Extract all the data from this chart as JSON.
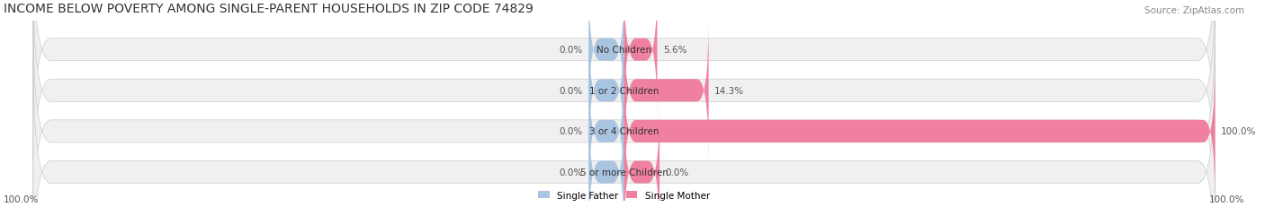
{
  "title": "INCOME BELOW POVERTY AMONG SINGLE-PARENT HOUSEHOLDS IN ZIP CODE 74829",
  "source": "Source: ZipAtlas.com",
  "categories": [
    "No Children",
    "1 or 2 Children",
    "3 or 4 Children",
    "5 or more Children"
  ],
  "single_father": [
    0.0,
    0.0,
    0.0,
    0.0
  ],
  "single_mother": [
    5.6,
    14.3,
    100.0,
    0.0
  ],
  "father_color": "#a8c4e0",
  "mother_color": "#f080a0",
  "bar_bg_color": "#f0f0f0",
  "title_fontsize": 10,
  "source_fontsize": 7.5,
  "label_fontsize": 7.5,
  "cat_fontsize": 7.5,
  "max_val": 100.0,
  "xlim": [
    -100,
    100
  ],
  "legend_labels": [
    "Single Father",
    "Single Mother"
  ],
  "bar_height": 0.55,
  "background_color": "#ffffff",
  "axes_bg_color": "#f5f5f5"
}
